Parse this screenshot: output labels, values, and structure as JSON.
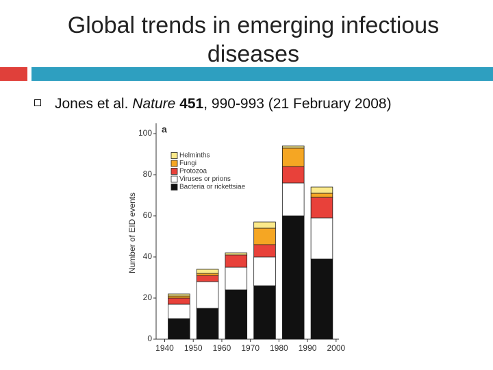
{
  "slide": {
    "title": "Global trends in emerging infectious diseases",
    "bullet": [
      "Jones et al.",
      "Nature",
      "451",
      ", 990-993 (21 February 2008)"
    ]
  },
  "chart_data": {
    "type": "stacked_bar",
    "panel": "a",
    "ylabel": "Number of EID events",
    "x": [
      1940,
      1950,
      1960,
      1970,
      1980,
      1990
    ],
    "bar_width": 10,
    "xlim": [
      1937,
      2001
    ],
    "xticks": [
      1940,
      1950,
      1960,
      1970,
      1980,
      1990,
      2000
    ],
    "ylim": [
      0,
      105
    ],
    "yticks": [
      0,
      20,
      40,
      60,
      80,
      100
    ],
    "series": [
      {
        "name": "Bacteria or rickettsiae",
        "color": "#111111",
        "values": [
          10,
          15,
          24,
          26,
          60,
          39
        ]
      },
      {
        "name": "Viruses or prions",
        "color": "#ffffff",
        "values": [
          7,
          13,
          11,
          14,
          16,
          20
        ]
      },
      {
        "name": "Protozoa",
        "color": "#e8413a",
        "values": [
          3,
          3,
          6,
          6,
          8,
          10
        ]
      },
      {
        "name": "Fungi",
        "color": "#f5a623",
        "values": [
          1,
          1,
          0,
          8,
          9,
          2
        ]
      },
      {
        "name": "Helminths",
        "color": "#fbe98a",
        "values": [
          1,
          2,
          1,
          3,
          1,
          3
        ]
      }
    ]
  }
}
